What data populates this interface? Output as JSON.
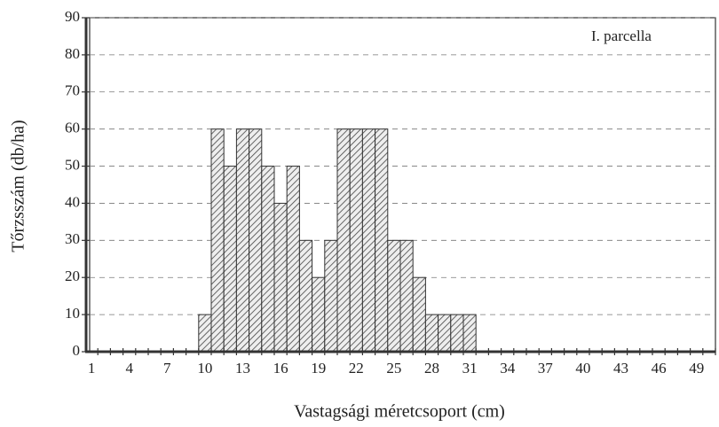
{
  "chart_data": {
    "type": "bar",
    "annotation": "I. parcella",
    "x_label": "Vastagsági méretcsoport (cm)",
    "y_label": "Tőrzsszám (db/ha)",
    "categories": [
      "1",
      null,
      null,
      "4",
      null,
      null,
      "7",
      null,
      null,
      "10",
      null,
      null,
      "13",
      null,
      null,
      "16",
      null,
      null,
      "19",
      null,
      null,
      "22",
      null,
      null,
      "25",
      null,
      null,
      "28",
      null,
      null,
      "31",
      null,
      null,
      "34",
      null,
      null,
      "37",
      null,
      null,
      "40",
      null,
      null,
      "43",
      null,
      null,
      "46",
      null,
      null,
      "49",
      null
    ],
    "values": [
      0,
      0,
      0,
      0,
      0,
      0,
      0,
      0,
      0,
      10,
      60,
      50,
      60,
      60,
      50,
      40,
      50,
      30,
      20,
      30,
      60,
      60,
      60,
      60,
      30,
      30,
      20,
      10,
      10,
      10,
      10,
      0,
      0,
      0,
      0,
      0,
      0,
      0,
      0,
      0,
      0,
      0,
      0,
      0,
      0,
      0,
      0,
      0,
      0,
      0
    ],
    "color": "#555555",
    "ylim": [
      0,
      90
    ],
    "yticks": [
      0,
      10,
      20,
      30,
      40,
      50,
      60,
      70,
      80,
      90
    ],
    "grid": true
  }
}
